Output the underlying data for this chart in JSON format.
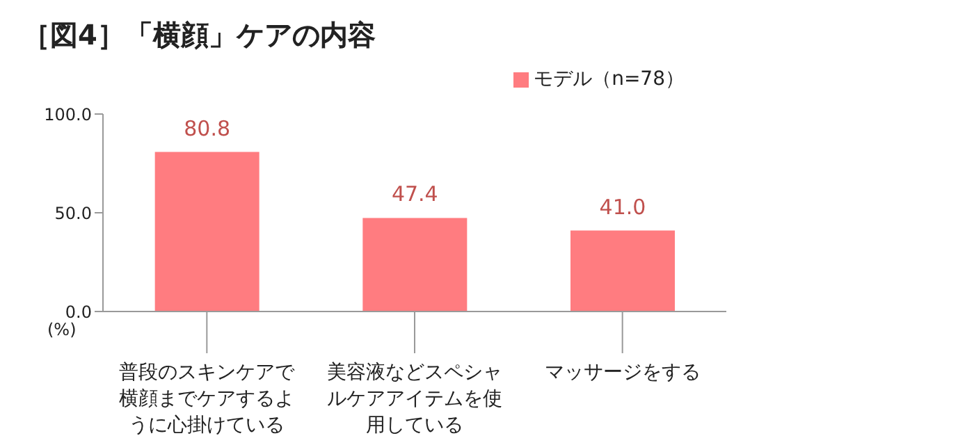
{
  "chart_data": {
    "type": "bar",
    "title": "［図4］「横顔」ケアの内容",
    "ylabel": "(%)",
    "categories": [
      "普段のスキンケアで横顔までケアするように心掛けている",
      "美容液などスペシャルケアアイテムを使用している",
      "マッサージをする"
    ],
    "series": [
      {
        "name": "モデル（n=78）",
        "color": "#ff7c80",
        "values": [
          80.8,
          47.4,
          41.0
        ],
        "value_labels": [
          "80.8",
          "47.4",
          "41.0"
        ]
      }
    ],
    "ylim": [
      0,
      100
    ],
    "yticks": [
      {
        "value": 0,
        "label": "0.0"
      },
      {
        "value": 50,
        "label": "50.0"
      },
      {
        "value": 100,
        "label": "100.0"
      }
    ],
    "grid": false,
    "legend": "top"
  }
}
